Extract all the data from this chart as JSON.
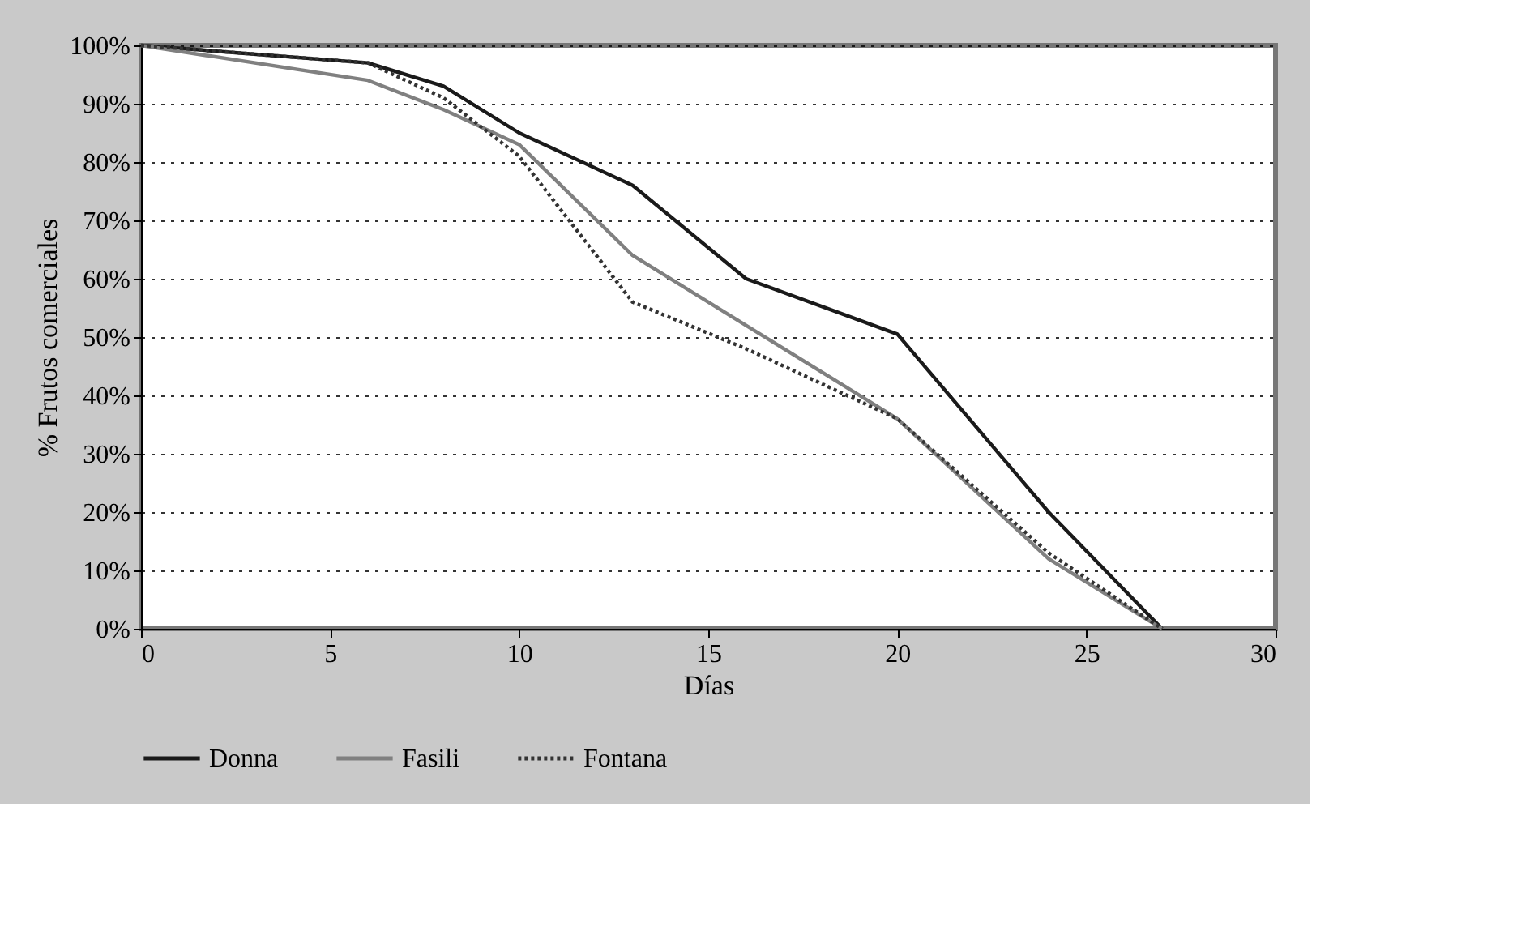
{
  "chart_data": {
    "type": "line",
    "xlabel": "Días",
    "ylabel": "% Frutos comerciales",
    "x": [
      0,
      6,
      8,
      10,
      13,
      16,
      20,
      24,
      27
    ],
    "series": [
      {
        "name": "Donna",
        "color": "#1a1a1a",
        "line_style": "solid",
        "values": [
          100,
          97,
          93,
          85,
          76,
          60,
          50.5,
          20,
          0
        ]
      },
      {
        "name": "Fasili",
        "color": "#808080",
        "line_style": "solid",
        "values": [
          100,
          94,
          89,
          83,
          64,
          52,
          36,
          12,
          0
        ]
      },
      {
        "name": "Fontana",
        "color": "#333333",
        "line_style": "dotted",
        "values": [
          100,
          97,
          91,
          81,
          56,
          48,
          36,
          13,
          0
        ]
      }
    ],
    "xlim": [
      0,
      30
    ],
    "xticks": [
      0,
      5,
      10,
      15,
      20,
      25,
      30
    ],
    "ylim": [
      0,
      100
    ],
    "yticks": [
      {
        "value": 0,
        "label": "0%"
      },
      {
        "value": 10,
        "label": "10%"
      },
      {
        "value": 20,
        "label": "20%"
      },
      {
        "value": 30,
        "label": "30%"
      },
      {
        "value": 40,
        "label": "40%"
      },
      {
        "value": 50,
        "label": "50%"
      },
      {
        "value": 60,
        "label": "60%"
      },
      {
        "value": 70,
        "label": "70%"
      },
      {
        "value": 80,
        "label": "80%"
      },
      {
        "value": 90,
        "label": "90%"
      },
      {
        "value": 100,
        "label": "100%"
      }
    ],
    "grid": "y",
    "legend": "bottom",
    "marker": "none"
  }
}
